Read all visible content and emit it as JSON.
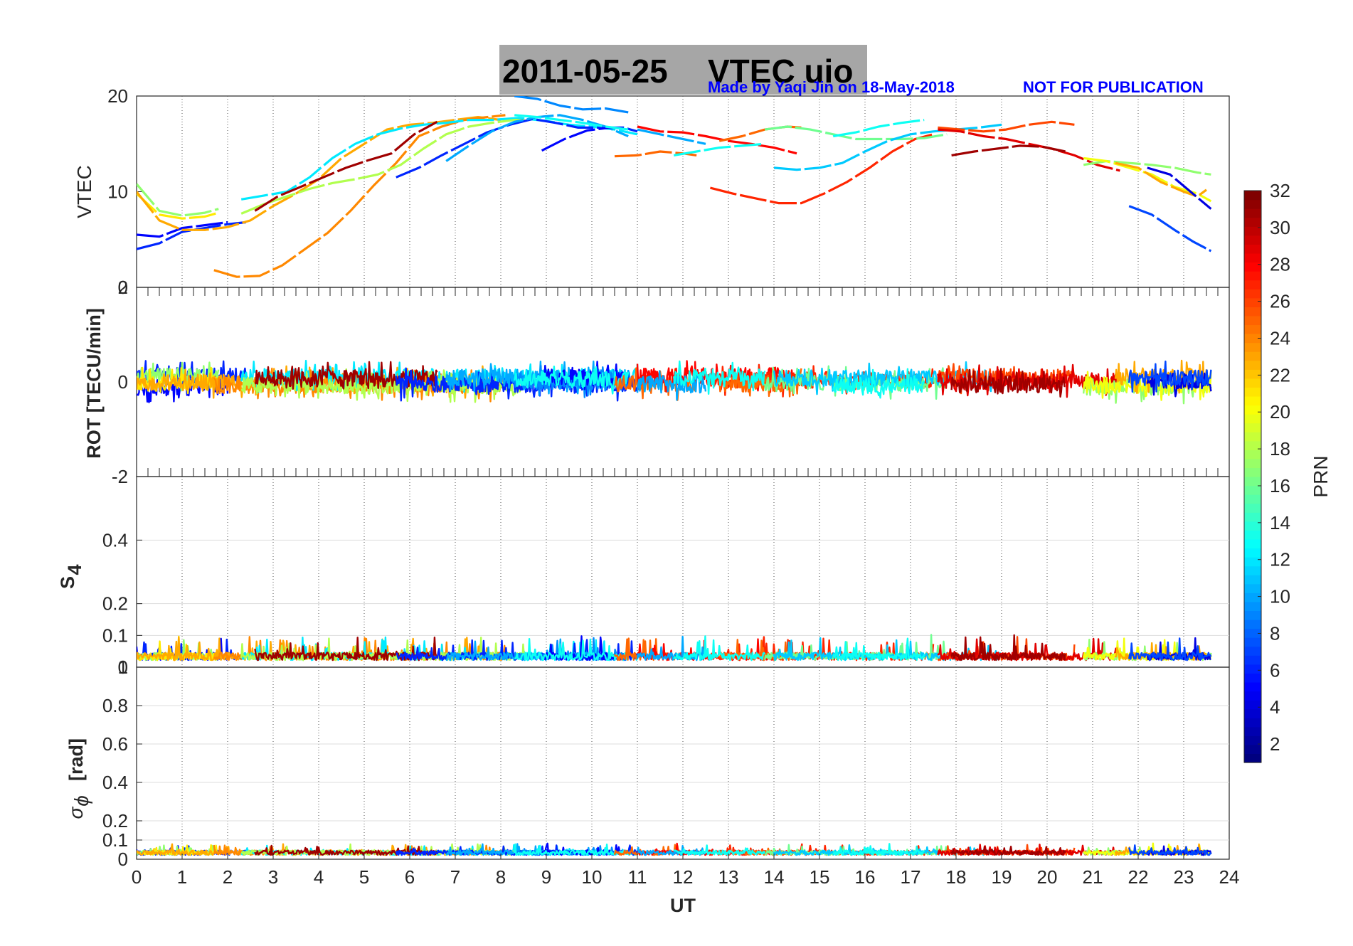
{
  "figure": {
    "title_date": "2011-05-25",
    "title_main": "VTEC  uio",
    "credit": "Made by Yaqi Jin on 18-May-2018",
    "warning": "NOT FOR PUBLICATION",
    "note_color": "#0000ff",
    "title_box_color": "#a6a6a6"
  },
  "chart_data": [
    {
      "type": "line",
      "panel": "vtec",
      "ylabel": "VTEC",
      "xlim": [
        0,
        24
      ],
      "ylim": [
        0,
        20
      ],
      "yticks": [
        0,
        10,
        20
      ],
      "grid": "x-dotted",
      "series": [
        {
          "prn": 5,
          "x": [
            0.0,
            0.5,
            1.0,
            1.5,
            2.0
          ],
          "y": [
            5.5,
            5.3,
            6.2,
            6.5,
            6.8
          ]
        },
        {
          "prn": 6,
          "x": [
            0.0,
            0.5,
            1.0,
            1.5,
            2.0,
            2.4
          ],
          "y": [
            4.0,
            4.6,
            5.8,
            6.2,
            6.6,
            6.8
          ]
        },
        {
          "prn": 17,
          "x": [
            0.0,
            0.5,
            1.0,
            1.5,
            1.8
          ],
          "y": [
            10.8,
            8.0,
            7.5,
            7.8,
            8.2
          ]
        },
        {
          "prn": 21,
          "x": [
            0.0,
            0.5,
            1.0,
            1.5,
            1.8
          ],
          "y": [
            9.8,
            7.6,
            7.2,
            7.4,
            7.8
          ]
        },
        {
          "prn": 23,
          "x": [
            0.0,
            0.5,
            1.0,
            1.5,
            2.0,
            2.5,
            3.0,
            3.5,
            4.0,
            4.5,
            5.0,
            5.5,
            6.0,
            6.5,
            7.0,
            7.5,
            8.0
          ],
          "y": [
            10.0,
            7.0,
            6.0,
            6.0,
            6.3,
            7.0,
            8.5,
            9.8,
            11.3,
            13.5,
            15.0,
            16.5,
            17.0,
            17.2,
            17.5,
            17.8,
            17.5
          ]
        },
        {
          "prn": 24,
          "x": [
            1.7,
            2.2,
            2.7,
            3.2,
            3.7,
            4.2,
            4.7,
            5.2,
            5.7,
            6.2,
            6.7,
            7.2,
            7.7,
            8.1
          ],
          "y": [
            1.8,
            1.1,
            1.2,
            2.3,
            4.0,
            5.7,
            8.0,
            10.6,
            13.0,
            15.8,
            16.8,
            17.5,
            17.8,
            18.0
          ]
        },
        {
          "prn": 12,
          "x": [
            2.3,
            2.8,
            3.3,
            3.8,
            4.3,
            4.8,
            5.3,
            5.8,
            6.3,
            6.8,
            7.3,
            7.8,
            8.4,
            9.0,
            9.5,
            10.0,
            10.5,
            11.0
          ],
          "y": [
            9.2,
            9.6,
            10.0,
            11.5,
            13.5,
            15.0,
            16.0,
            16.6,
            17.0,
            17.2,
            17.5,
            17.5,
            17.7,
            17.4,
            17.0,
            16.8,
            16.5,
            16.0
          ]
        },
        {
          "prn": 18,
          "x": [
            2.3,
            2.8,
            3.3,
            3.8,
            4.3,
            4.8,
            5.3,
            5.8,
            6.3,
            6.8,
            7.3,
            7.8,
            8.3,
            8.6
          ],
          "y": [
            7.7,
            8.7,
            9.5,
            10.3,
            10.9,
            11.3,
            11.8,
            12.8,
            14.5,
            16.0,
            16.8,
            17.2,
            17.5,
            17.5
          ]
        },
        {
          "prn": 31,
          "x": [
            2.6,
            3.1,
            3.6,
            4.1,
            4.6,
            5.1,
            5.6,
            6.1,
            6.6
          ],
          "y": [
            8.0,
            9.5,
            10.5,
            11.5,
            12.5,
            13.3,
            14.0,
            16.0,
            17.3
          ]
        },
        {
          "prn": 6,
          "x": [
            5.7,
            6.2,
            6.7,
            7.2,
            7.7,
            8.2,
            8.7,
            9.2,
            9.7,
            10.2,
            10.7,
            11.0
          ],
          "y": [
            11.5,
            12.5,
            13.8,
            15.0,
            16.2,
            17.0,
            17.6,
            17.2,
            16.7,
            16.7,
            16.7,
            16.3
          ]
        },
        {
          "prn": 10,
          "x": [
            6.8,
            7.3,
            7.8,
            8.3,
            8.8,
            9.3,
            9.8,
            10.3,
            10.8
          ],
          "y": [
            13.2,
            14.8,
            16.3,
            17.3,
            17.8,
            18.0,
            17.5,
            16.8,
            15.8
          ]
        },
        {
          "prn": 9,
          "x": [
            8.3,
            8.8,
            9.3,
            9.8,
            10.3,
            10.8
          ],
          "y": [
            20.0,
            19.7,
            19.0,
            18.6,
            18.7,
            18.3
          ]
        },
        {
          "prn": 5,
          "x": [
            8.9,
            9.4,
            9.9,
            10.4,
            10.7
          ],
          "y": [
            14.3,
            15.5,
            16.4,
            16.7,
            16.6
          ]
        },
        {
          "prn": 13,
          "x": [
            8.3,
            8.8,
            9.3,
            9.8,
            10.3,
            10.8
          ],
          "y": [
            18.0,
            17.8,
            17.5,
            17.2,
            16.8,
            16.5
          ]
        },
        {
          "prn": 25,
          "x": [
            10.5,
            11.0,
            11.5,
            12.0,
            12.3
          ],
          "y": [
            13.7,
            13.8,
            14.2,
            14.0,
            13.8
          ]
        },
        {
          "prn": 28,
          "x": [
            11.0,
            11.5,
            12.0,
            12.5,
            13.0,
            13.5,
            14.0,
            14.5
          ],
          "y": [
            16.8,
            16.3,
            16.2,
            15.8,
            15.3,
            15.0,
            14.6,
            14.0
          ]
        },
        {
          "prn": 10,
          "x": [
            11.0,
            11.5,
            12.0,
            12.5
          ],
          "y": [
            16.5,
            16.0,
            15.5,
            15.0
          ]
        },
        {
          "prn": 27,
          "x": [
            12.6,
            13.1,
            13.6,
            14.1,
            14.6,
            15.1,
            15.6,
            16.1,
            16.6,
            17.1,
            17.5
          ],
          "y": [
            10.4,
            9.8,
            9.3,
            8.8,
            8.8,
            9.8,
            11.0,
            12.5,
            14.2,
            15.5,
            16.0
          ]
        },
        {
          "prn": 25,
          "x": [
            12.8,
            13.3,
            13.8,
            14.3,
            14.6
          ],
          "y": [
            15.3,
            15.8,
            16.5,
            16.8,
            16.7
          ]
        },
        {
          "prn": 13,
          "x": [
            11.8,
            12.3,
            12.8,
            13.3,
            13.8
          ],
          "y": [
            13.8,
            14.2,
            14.6,
            14.8,
            15.0
          ]
        },
        {
          "prn": 16,
          "x": [
            13.8,
            14.3,
            14.8,
            15.3,
            15.8,
            16.3,
            16.8,
            17.3,
            17.8
          ],
          "y": [
            16.5,
            16.8,
            16.5,
            16.0,
            15.5,
            15.5,
            15.5,
            15.6,
            16.0
          ]
        },
        {
          "prn": 11,
          "x": [
            14.0,
            14.5,
            15.0,
            15.5,
            16.0,
            16.5,
            17.0,
            17.5,
            18.0,
            18.5,
            19.0
          ],
          "y": [
            12.5,
            12.3,
            12.5,
            13.0,
            14.2,
            15.3,
            16.0,
            16.3,
            16.5,
            16.7,
            17.0
          ]
        },
        {
          "prn": 13,
          "x": [
            15.3,
            15.8,
            16.3,
            16.8,
            17.3
          ],
          "y": [
            15.8,
            16.2,
            16.8,
            17.2,
            17.5
          ]
        },
        {
          "prn": 26,
          "x": [
            17.6,
            18.1,
            18.6,
            19.1,
            19.6,
            20.1,
            20.6
          ],
          "y": [
            16.7,
            16.5,
            16.3,
            16.5,
            17.0,
            17.3,
            17.0
          ]
        },
        {
          "prn": 29,
          "x": [
            17.6,
            18.1,
            18.6,
            19.1,
            19.6,
            20.1,
            20.6,
            21.1,
            21.6
          ],
          "y": [
            16.5,
            16.3,
            15.8,
            15.5,
            15.0,
            14.5,
            13.8,
            12.8,
            12.2
          ]
        },
        {
          "prn": 31,
          "x": [
            17.9,
            18.4,
            18.9,
            19.4,
            19.9,
            20.4
          ],
          "y": [
            13.8,
            14.2,
            14.5,
            14.8,
            14.7,
            14.2
          ]
        },
        {
          "prn": 17,
          "x": [
            20.8,
            21.3,
            21.8,
            22.3,
            22.8,
            23.3,
            23.6
          ],
          "y": [
            12.8,
            13.2,
            13.0,
            12.8,
            12.5,
            12.0,
            11.8
          ]
        },
        {
          "prn": 20,
          "x": [
            20.8,
            21.3,
            21.8,
            22.3,
            22.8,
            23.3,
            23.6
          ],
          "y": [
            13.5,
            13.2,
            12.5,
            11.8,
            10.5,
            9.8,
            9.0
          ]
        },
        {
          "prn": 23,
          "x": [
            21.5,
            22.0,
            22.5,
            23.0,
            23.3,
            23.5
          ],
          "y": [
            13.0,
            12.5,
            11.0,
            10.0,
            9.5,
            10.2
          ]
        },
        {
          "prn": 4,
          "x": [
            22.2,
            22.7,
            23.2,
            23.6
          ],
          "y": [
            12.5,
            11.8,
            9.8,
            8.2
          ]
        },
        {
          "prn": 7,
          "x": [
            21.8,
            22.3,
            22.8,
            23.2,
            23.6
          ],
          "y": [
            8.5,
            7.6,
            6.0,
            4.8,
            3.8
          ]
        }
      ]
    },
    {
      "type": "line",
      "panel": "rot",
      "ylabel": "ROT [TECU/min]",
      "xlim": [
        0,
        24
      ],
      "ylim": [
        -2,
        2
      ],
      "yticks": [
        -2,
        0,
        2
      ],
      "grid": "x-ticks-only",
      "description_values": {
        "center": 0,
        "typical_amplitude": 0.35
      }
    },
    {
      "type": "line",
      "panel": "s4",
      "ylabel": "S",
      "ylabel_sub": "4",
      "xlim": [
        0,
        24
      ],
      "ylim": [
        0,
        0.6
      ],
      "yticks": [
        0,
        0.1,
        0.2,
        0.4
      ],
      "grid": "xy-dotted",
      "description_values": {
        "baseline": 0.04,
        "max_spike": 0.1
      }
    },
    {
      "type": "line",
      "panel": "sigma_phi",
      "ylabel": "σ",
      "ylabel_sub": "ϕ",
      "ylabel_unit": "[rad]",
      "xlim": [
        0,
        24
      ],
      "ylim": [
        0,
        1
      ],
      "yticks": [
        0,
        0.1,
        0.2,
        0.4,
        0.6,
        0.8,
        1
      ],
      "grid": "xy-dotted",
      "description_values": {
        "baseline": 0.04,
        "max_spike": 0.08
      }
    }
  ],
  "xaxis": {
    "label": "UT",
    "ticks": [
      0,
      1,
      2,
      3,
      4,
      5,
      6,
      7,
      8,
      9,
      10,
      11,
      12,
      13,
      14,
      15,
      16,
      17,
      18,
      19,
      20,
      21,
      22,
      23,
      24
    ]
  },
  "colorbar": {
    "label": "PRN",
    "colormap": "jet",
    "range": [
      1,
      32
    ],
    "ticks": [
      2,
      4,
      6,
      8,
      10,
      12,
      14,
      16,
      18,
      20,
      22,
      24,
      26,
      28,
      30,
      32
    ]
  }
}
